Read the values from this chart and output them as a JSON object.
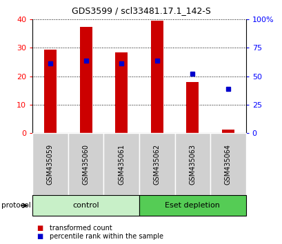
{
  "title": "GDS3599 / scl33481.17.1_142-S",
  "samples": [
    "GSM435059",
    "GSM435060",
    "GSM435061",
    "GSM435062",
    "GSM435063",
    "GSM435064"
  ],
  "red_bars": [
    29.5,
    37.5,
    28.5,
    39.5,
    18.0,
    1.2
  ],
  "blue_squares_left_axis": [
    24.5,
    25.5,
    24.5,
    25.5,
    21.0,
    15.5
  ],
  "left_ylim": [
    0,
    40
  ],
  "right_ylim": [
    0,
    100
  ],
  "left_yticks": [
    0,
    10,
    20,
    30,
    40
  ],
  "right_yticks": [
    0,
    25,
    50,
    75,
    100
  ],
  "right_yticklabels": [
    "0",
    "25",
    "50",
    "75",
    "100%"
  ],
  "groups": [
    {
      "label": "control",
      "start": 0,
      "end": 3,
      "color": "#c8f0c8"
    },
    {
      "label": "Eset depletion",
      "start": 3,
      "end": 6,
      "color": "#55cc55"
    }
  ],
  "bar_color": "#cc0000",
  "square_color": "#0000cc",
  "bar_width": 0.35,
  "label_area_color": "#d0d0d0",
  "legend_red_label": "transformed count",
  "legend_blue_label": "percentile rank within the sample",
  "protocol_label": "protocol"
}
